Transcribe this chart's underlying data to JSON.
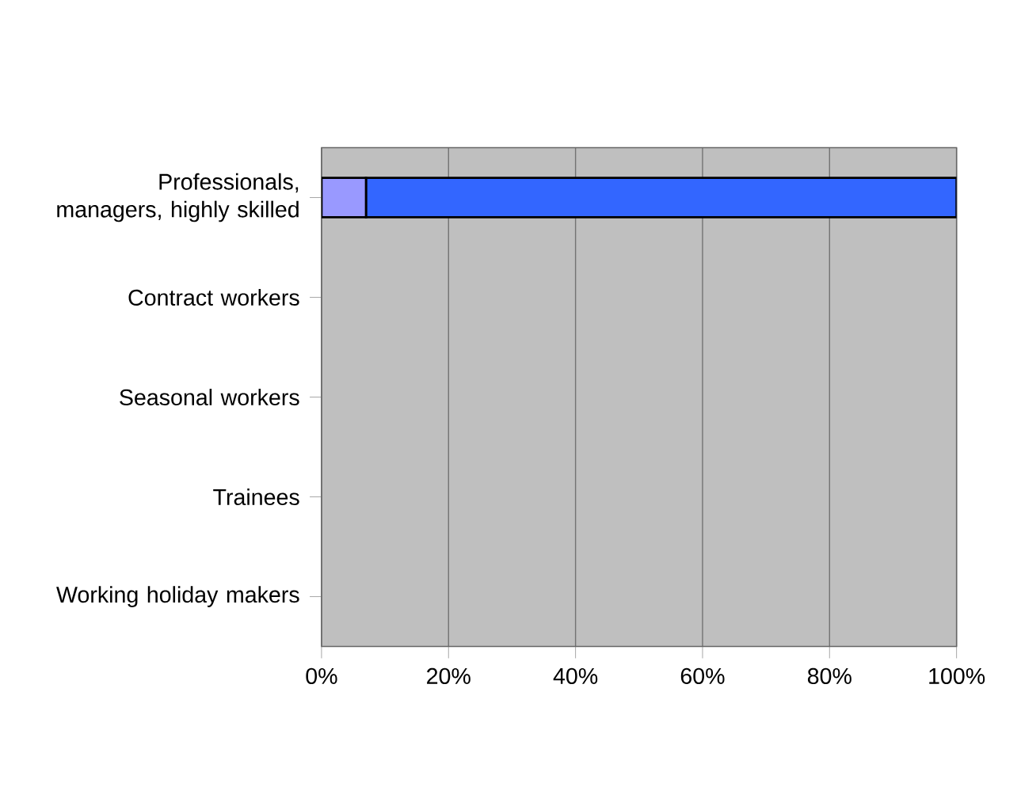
{
  "chart_data": {
    "type": "bar",
    "orientation": "horizontal",
    "stacked": true,
    "categories": [
      "Professionals, managers, highly skilled",
      "Contract workers",
      "Seasonal workers",
      "Trainees",
      "Working holiday makers"
    ],
    "series": [
      {
        "color": "#9999ff",
        "values": [
          7,
          0,
          0,
          0,
          0
        ]
      },
      {
        "color": "#3366ff",
        "values": [
          93,
          0,
          0,
          0,
          0
        ]
      }
    ],
    "xlim": [
      0,
      100
    ],
    "xticks": [
      {
        "value": 0,
        "label": "0%"
      },
      {
        "value": 20,
        "label": "20%"
      },
      {
        "value": 40,
        "label": "40%"
      },
      {
        "value": 60,
        "label": "60%"
      },
      {
        "value": 80,
        "label": "80%"
      },
      {
        "value": 100,
        "label": "100%"
      }
    ],
    "grid": "x"
  }
}
